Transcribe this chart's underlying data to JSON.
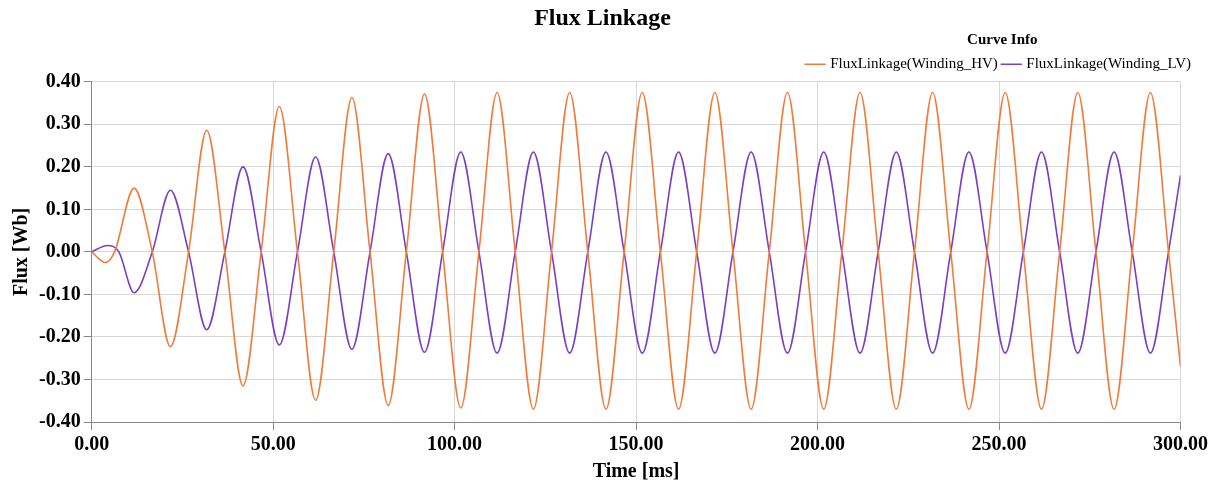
{
  "chart_data": {
    "type": "line",
    "title": "Flux Linkage",
    "xlabel": "Time [ms]",
    "ylabel": "Flux [Wb]",
    "legend_title": "Curve Info",
    "legend": "top right",
    "grid": true,
    "marker": "none",
    "line_style": "solid",
    "xlim": [
      0,
      300
    ],
    "ylim": [
      -0.4,
      0.4
    ],
    "xticks": [
      {
        "value": 0,
        "label": "0.00"
      },
      {
        "value": 50,
        "label": "50.00"
      },
      {
        "value": 100,
        "label": "100.00"
      },
      {
        "value": 150,
        "label": "150.00"
      },
      {
        "value": 200,
        "label": "200.00"
      },
      {
        "value": 250,
        "label": "250.00"
      },
      {
        "value": 300,
        "label": "300.00"
      }
    ],
    "yticks": [
      {
        "value": -0.4,
        "label": "-0.40"
      },
      {
        "value": -0.3,
        "label": "-0.30"
      },
      {
        "value": -0.2,
        "label": "-0.20"
      },
      {
        "value": -0.1,
        "label": "-0.10"
      },
      {
        "value": 0,
        "label": "0.00"
      },
      {
        "value": 0.1,
        "label": "0.10"
      },
      {
        "value": 0.2,
        "label": "0.20"
      },
      {
        "value": 0.3,
        "label": "0.30"
      },
      {
        "value": 0.4,
        "label": "0.40"
      }
    ],
    "series": [
      {
        "name": "FluxLinkage(Winding_HV)",
        "color": "#f07c3a",
        "x": [
          0,
          3.8,
          6.3,
          11.7,
          16.7,
          21.7,
          26.7,
          31.7,
          36.7,
          41.7,
          46.7,
          51.7,
          56.7,
          61.7,
          66.7,
          71.7,
          76.7,
          81.7,
          86.7,
          91.7,
          96.7,
          101.7,
          106.7,
          111.7,
          116.7,
          121.7,
          126.7,
          131.7,
          136.7,
          141.7,
          146.7,
          151.7,
          156.7,
          161.7,
          166.7,
          171.7,
          176.7,
          181.7,
          186.7,
          191.7,
          196.7,
          201.7,
          206.7,
          211.7,
          216.7,
          221.7,
          226.7,
          231.7,
          236.7,
          241.7,
          246.7,
          251.7,
          256.7,
          261.7,
          266.7,
          271.7,
          276.7,
          281.7,
          286.7,
          291.7,
          296.7,
          300
        ],
        "values": [
          0,
          -0.025,
          0,
          0.15,
          0,
          -0.223,
          0,
          0.286,
          0,
          -0.315,
          0,
          0.342,
          0,
          -0.349,
          0,
          0.363,
          0,
          -0.361,
          0,
          0.371,
          0,
          -0.367,
          0,
          0.375,
          0,
          -0.37,
          0,
          0.375,
          0,
          -0.37,
          0,
          0.375,
          0,
          -0.37,
          0,
          0.375,
          0,
          -0.37,
          0,
          0.375,
          0,
          -0.37,
          0,
          0.375,
          0,
          -0.37,
          0,
          0.375,
          0,
          -0.37,
          0,
          0.375,
          0,
          -0.37,
          0,
          0.375,
          0,
          -0.37,
          0,
          0.375,
          0,
          -0.27
        ]
      },
      {
        "name": "FluxLinkage(Winding_LV)",
        "color": "#7b3fc4",
        "x": [
          0,
          4.3,
          7.5,
          11.7,
          16.7,
          21.7,
          26.7,
          31.7,
          36.7,
          41.7,
          46.7,
          51.7,
          56.7,
          61.7,
          66.7,
          71.7,
          76.7,
          81.7,
          86.7,
          91.7,
          96.7,
          101.7,
          106.7,
          111.7,
          116.7,
          121.7,
          126.7,
          131.7,
          136.7,
          141.7,
          146.7,
          151.7,
          156.7,
          161.7,
          166.7,
          171.7,
          176.7,
          181.7,
          186.7,
          191.7,
          196.7,
          201.7,
          206.7,
          211.7,
          216.7,
          221.7,
          226.7,
          231.7,
          236.7,
          241.7,
          246.7,
          251.7,
          256.7,
          261.7,
          266.7,
          271.7,
          276.7,
          281.7,
          286.7,
          291.7,
          296.7,
          300
        ],
        "values": [
          0,
          0.015,
          0,
          -0.096,
          0,
          0.145,
          0,
          -0.183,
          0,
          0.2,
          0,
          -0.219,
          0,
          0.223,
          0,
          -0.229,
          0,
          0.231,
          0,
          -0.236,
          0,
          0.235,
          0,
          -0.238,
          0,
          0.235,
          0,
          -0.238,
          0,
          0.235,
          0,
          -0.238,
          0,
          0.235,
          0,
          -0.238,
          0,
          0.235,
          0,
          -0.238,
          0,
          0.235,
          0,
          -0.238,
          0,
          0.235,
          0,
          -0.238,
          0,
          0.235,
          0,
          -0.238,
          0,
          0.235,
          0,
          -0.238,
          0,
          0.235,
          0,
          -0.238,
          0,
          0.18
        ]
      }
    ]
  }
}
